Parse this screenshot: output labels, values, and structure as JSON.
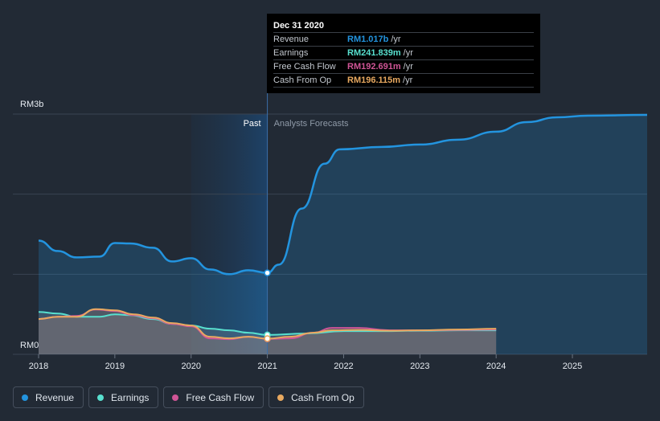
{
  "chart_data": {
    "type": "line",
    "y_axis": {
      "top_label": "RM3b",
      "bottom_label": "RM0",
      "ylim": [
        0,
        3000
      ]
    },
    "x_ticks": [
      "2018",
      "2019",
      "2020",
      "2021",
      "2022",
      "2023",
      "2024",
      "2025"
    ],
    "xlim": [
      2018,
      2025.98
    ],
    "divider_x": 2021.0,
    "past_shade_start": 2020.0,
    "regions": {
      "past": "Past",
      "forecast": "Analysts Forecasts"
    },
    "series": [
      {
        "name": "Revenue",
        "color": "#2394df",
        "points": [
          [
            2018.0,
            1420
          ],
          [
            2018.25,
            1290
          ],
          [
            2018.5,
            1210
          ],
          [
            2018.8,
            1220
          ],
          [
            2019.0,
            1390
          ],
          [
            2019.2,
            1385
          ],
          [
            2019.5,
            1330
          ],
          [
            2019.75,
            1160
          ],
          [
            2020.0,
            1200
          ],
          [
            2020.25,
            1060
          ],
          [
            2020.5,
            1000
          ],
          [
            2020.75,
            1050
          ],
          [
            2021.0,
            1017
          ],
          [
            2021.15,
            1120
          ],
          [
            2021.45,
            1820
          ],
          [
            2021.75,
            2380
          ],
          [
            2021.95,
            2560
          ],
          [
            2022.5,
            2590
          ],
          [
            2023.0,
            2620
          ],
          [
            2023.5,
            2680
          ],
          [
            2024.0,
            2780
          ],
          [
            2024.4,
            2900
          ],
          [
            2024.8,
            2960
          ],
          [
            2025.2,
            2980
          ],
          [
            2025.98,
            2990
          ]
        ]
      },
      {
        "name": "Earnings",
        "color": "#58e0cf",
        "points": [
          [
            2018.0,
            530
          ],
          [
            2018.25,
            510
          ],
          [
            2018.5,
            470
          ],
          [
            2018.8,
            470
          ],
          [
            2019.0,
            500
          ],
          [
            2019.2,
            490
          ],
          [
            2019.5,
            440
          ],
          [
            2019.75,
            380
          ],
          [
            2020.0,
            360
          ],
          [
            2020.25,
            320
          ],
          [
            2020.5,
            300
          ],
          [
            2020.75,
            270
          ],
          [
            2021.0,
            242
          ],
          [
            2021.5,
            260
          ],
          [
            2022.0,
            290
          ],
          [
            2022.5,
            290
          ],
          [
            2023.0,
            295
          ],
          [
            2023.5,
            300
          ],
          [
            2024.0,
            300
          ]
        ]
      },
      {
        "name": "Free Cash Flow",
        "color": "#d05596",
        "points": [
          [
            2018.0,
            440
          ],
          [
            2018.25,
            470
          ],
          [
            2018.5,
            480
          ],
          [
            2018.75,
            560
          ],
          [
            2019.0,
            540
          ],
          [
            2019.25,
            490
          ],
          [
            2019.5,
            450
          ],
          [
            2019.75,
            380
          ],
          [
            2020.0,
            350
          ],
          [
            2020.25,
            200
          ],
          [
            2020.5,
            190
          ],
          [
            2020.75,
            220
          ],
          [
            2021.0,
            193
          ],
          [
            2021.3,
            200
          ],
          [
            2021.6,
            270
          ],
          [
            2021.85,
            330
          ],
          [
            2022.2,
            330
          ],
          [
            2022.6,
            300
          ],
          [
            2023.0,
            300
          ],
          [
            2023.5,
            305
          ],
          [
            2024.0,
            310
          ]
        ]
      },
      {
        "name": "Cash From Op",
        "color": "#e8a960",
        "points": [
          [
            2018.0,
            440
          ],
          [
            2018.25,
            470
          ],
          [
            2018.5,
            470
          ],
          [
            2018.75,
            565
          ],
          [
            2019.0,
            550
          ],
          [
            2019.25,
            500
          ],
          [
            2019.5,
            460
          ],
          [
            2019.75,
            390
          ],
          [
            2020.0,
            360
          ],
          [
            2020.25,
            220
          ],
          [
            2020.5,
            200
          ],
          [
            2020.75,
            220
          ],
          [
            2021.0,
            196
          ],
          [
            2021.3,
            220
          ],
          [
            2021.6,
            270
          ],
          [
            2021.85,
            300
          ],
          [
            2022.2,
            305
          ],
          [
            2022.6,
            295
          ],
          [
            2023.0,
            300
          ],
          [
            2023.5,
            310
          ],
          [
            2024.0,
            320
          ]
        ]
      }
    ],
    "highlight": {
      "x": 2021.0,
      "date": "Dec 31 2020",
      "rows": [
        {
          "label": "Revenue",
          "value": "RM1.017b",
          "unit": "/yr",
          "color": "#2394df",
          "y": 1017
        },
        {
          "label": "Earnings",
          "value": "RM241.839m",
          "unit": "/yr",
          "color": "#58e0cf",
          "y": 242
        },
        {
          "label": "Free Cash Flow",
          "value": "RM192.691m",
          "unit": "/yr",
          "color": "#d05596",
          "y": 193
        },
        {
          "label": "Cash From Op",
          "value": "RM196.115m",
          "unit": "/yr",
          "color": "#e8a960",
          "y": 196
        }
      ]
    }
  },
  "legend": [
    {
      "label": "Revenue",
      "color": "#2394df"
    },
    {
      "label": "Earnings",
      "color": "#58e0cf"
    },
    {
      "label": "Free Cash Flow",
      "color": "#d05596"
    },
    {
      "label": "Cash From Op",
      "color": "#e8a960"
    }
  ]
}
